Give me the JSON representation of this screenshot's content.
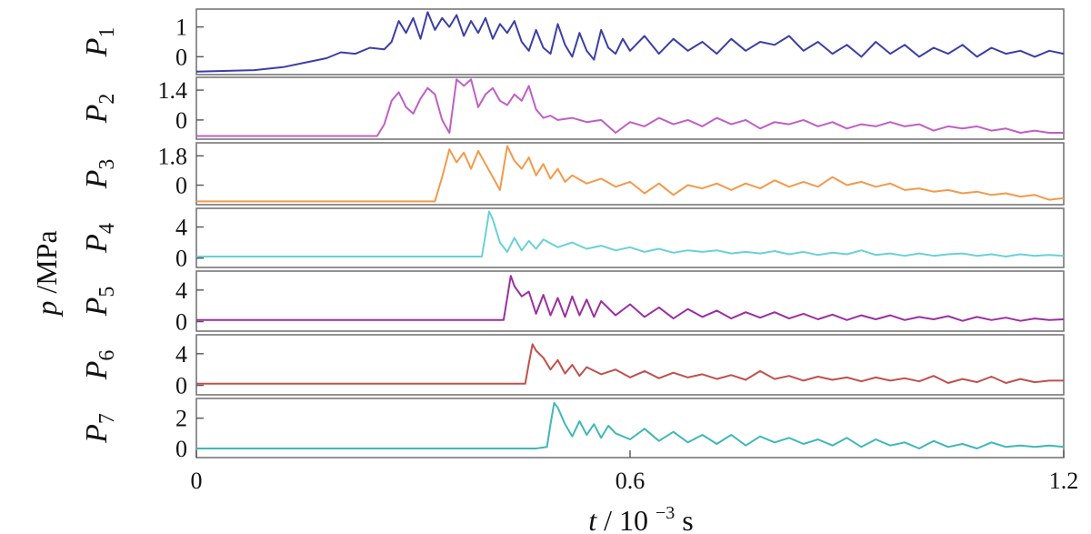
{
  "chart_data": {
    "type": "line",
    "layout": "stacked-panels",
    "xlabel": {
      "var": "t",
      "sep": "/ ",
      "unit_base": "10",
      "unit_exp": "−3",
      "unit_tail": "s"
    },
    "ylabel": {
      "var": "p",
      "unit": "/MPa"
    },
    "xlim": [
      0,
      1.2
    ],
    "xticks": [
      {
        "value": 0,
        "label": "0"
      },
      {
        "value": 0.6,
        "label": "0.6"
      },
      {
        "value": 1.2,
        "label": "1.2"
      }
    ],
    "grid": false,
    "series": [
      {
        "name": "P",
        "sub": "1",
        "color": "#3b3fa6",
        "ylim": [
          -0.6,
          1.6
        ],
        "yticks": [
          {
            "value": 0,
            "label": "0"
          },
          {
            "value": 1,
            "label": "1"
          }
        ],
        "x": [
          0,
          0.08,
          0.12,
          0.15,
          0.18,
          0.2,
          0.22,
          0.24,
          0.26,
          0.27,
          0.28,
          0.29,
          0.3,
          0.31,
          0.32,
          0.33,
          0.34,
          0.35,
          0.36,
          0.37,
          0.38,
          0.39,
          0.4,
          0.41,
          0.42,
          0.43,
          0.44,
          0.45,
          0.46,
          0.47,
          0.48,
          0.49,
          0.5,
          0.51,
          0.52,
          0.53,
          0.54,
          0.55,
          0.56,
          0.57,
          0.58,
          0.59,
          0.6,
          0.62,
          0.64,
          0.66,
          0.68,
          0.7,
          0.72,
          0.74,
          0.76,
          0.78,
          0.8,
          0.82,
          0.84,
          0.86,
          0.88,
          0.9,
          0.92,
          0.94,
          0.96,
          0.98,
          1.0,
          1.02,
          1.04,
          1.06,
          1.08,
          1.1,
          1.12,
          1.14,
          1.16,
          1.18,
          1.2
        ],
        "y": [
          -0.5,
          -0.45,
          -0.35,
          -0.2,
          -0.05,
          0.15,
          0.1,
          0.3,
          0.25,
          0.5,
          1.2,
          0.8,
          1.3,
          0.6,
          1.5,
          0.9,
          1.3,
          1.0,
          1.4,
          0.7,
          1.2,
          0.8,
          1.3,
          0.6,
          1.1,
          0.8,
          1.2,
          0.5,
          0.2,
          0.9,
          0.3,
          0.1,
          1.1,
          0.4,
          0.0,
          0.8,
          0.2,
          -0.1,
          0.9,
          0.3,
          0.1,
          0.6,
          0.2,
          0.7,
          0.1,
          0.6,
          0.2,
          0.5,
          0.1,
          0.6,
          0.2,
          0.5,
          0.4,
          0.7,
          0.2,
          0.5,
          0.1,
          0.4,
          0.0,
          0.5,
          0.1,
          0.4,
          0.0,
          0.3,
          0.1,
          0.4,
          0.0,
          0.3,
          0.1,
          0.2,
          0.0,
          0.2,
          0.1
        ]
      },
      {
        "name": "P",
        "sub": "2",
        "color": "#c05fc4",
        "ylim": [
          -0.9,
          2.0
        ],
        "yticks": [
          {
            "value": 0,
            "label": "0"
          },
          {
            "value": 1.4,
            "label": "1.4"
          }
        ],
        "x": [
          0,
          0.25,
          0.26,
          0.27,
          0.28,
          0.29,
          0.3,
          0.31,
          0.32,
          0.33,
          0.34,
          0.35,
          0.36,
          0.37,
          0.38,
          0.39,
          0.4,
          0.41,
          0.42,
          0.43,
          0.44,
          0.45,
          0.46,
          0.47,
          0.48,
          0.49,
          0.5,
          0.52,
          0.54,
          0.56,
          0.58,
          0.6,
          0.62,
          0.64,
          0.66,
          0.68,
          0.7,
          0.72,
          0.74,
          0.76,
          0.78,
          0.8,
          0.82,
          0.84,
          0.86,
          0.88,
          0.9,
          0.92,
          0.94,
          0.96,
          0.98,
          1.0,
          1.02,
          1.04,
          1.06,
          1.08,
          1.1,
          1.12,
          1.14,
          1.16,
          1.18,
          1.2
        ],
        "y": [
          -0.75,
          -0.75,
          -0.2,
          0.9,
          1.3,
          0.6,
          0.3,
          1.0,
          1.5,
          1.2,
          0.0,
          -0.6,
          1.9,
          1.6,
          1.9,
          0.6,
          1.2,
          1.5,
          0.9,
          0.7,
          1.2,
          0.9,
          1.6,
          0.5,
          0.1,
          0.2,
          0.0,
          0.1,
          -0.1,
          0.0,
          -0.6,
          -0.1,
          -0.3,
          0.1,
          -0.2,
          0.0,
          -0.3,
          0.1,
          -0.2,
          0.0,
          -0.4,
          -0.1,
          -0.2,
          0.0,
          -0.3,
          -0.1,
          -0.4,
          -0.2,
          -0.3,
          -0.1,
          -0.3,
          -0.2,
          -0.5,
          -0.3,
          -0.4,
          -0.3,
          -0.5,
          -0.4,
          -0.6,
          -0.5,
          -0.6,
          -0.6
        ]
      },
      {
        "name": "P",
        "sub": "3",
        "color": "#f39a4a",
        "ylim": [
          -1.2,
          2.6
        ],
        "yticks": [
          {
            "value": 0,
            "label": "0"
          },
          {
            "value": 1.8,
            "label": "1.8"
          }
        ],
        "x": [
          0,
          0.33,
          0.34,
          0.35,
          0.36,
          0.37,
          0.38,
          0.39,
          0.4,
          0.41,
          0.42,
          0.43,
          0.44,
          0.45,
          0.46,
          0.47,
          0.48,
          0.49,
          0.5,
          0.51,
          0.52,
          0.54,
          0.56,
          0.58,
          0.6,
          0.62,
          0.64,
          0.66,
          0.68,
          0.7,
          0.72,
          0.74,
          0.76,
          0.78,
          0.8,
          0.82,
          0.84,
          0.86,
          0.88,
          0.9,
          0.92,
          0.94,
          0.96,
          0.98,
          1.0,
          1.02,
          1.04,
          1.06,
          1.08,
          1.1,
          1.12,
          1.14,
          1.16,
          1.18,
          1.2
        ],
        "y": [
          -1.0,
          -1.0,
          0.5,
          2.2,
          1.4,
          2.0,
          1.0,
          2.1,
          1.3,
          0.5,
          -0.3,
          2.4,
          1.5,
          1.0,
          1.7,
          0.6,
          1.3,
          0.4,
          1.0,
          0.2,
          0.6,
          0.1,
          0.4,
          -0.1,
          0.2,
          -0.5,
          0.1,
          -0.6,
          0.0,
          -0.2,
          0.1,
          -0.3,
          0.1,
          -0.2,
          0.3,
          -0.1,
          0.2,
          -0.1,
          0.5,
          0.0,
          0.2,
          -0.1,
          0.1,
          -0.3,
          -0.2,
          -0.4,
          -0.3,
          -0.5,
          -0.4,
          -0.6,
          -0.5,
          -0.7,
          -0.6,
          -0.9,
          -0.8
        ]
      },
      {
        "name": "P",
        "sub": "4",
        "color": "#6ad1d6",
        "ylim": [
          -1.2,
          6.4
        ],
        "yticks": [
          {
            "value": 0,
            "label": "0"
          },
          {
            "value": 4,
            "label": "4"
          }
        ],
        "x": [
          0,
          0.395,
          0.4,
          0.405,
          0.41,
          0.415,
          0.42,
          0.43,
          0.44,
          0.45,
          0.46,
          0.47,
          0.48,
          0.5,
          0.52,
          0.54,
          0.56,
          0.58,
          0.6,
          0.62,
          0.64,
          0.66,
          0.68,
          0.7,
          0.72,
          0.74,
          0.76,
          0.78,
          0.8,
          0.82,
          0.84,
          0.86,
          0.88,
          0.9,
          0.92,
          0.94,
          0.96,
          0.98,
          1.0,
          1.02,
          1.04,
          1.06,
          1.08,
          1.1,
          1.12,
          1.14,
          1.16,
          1.18,
          1.2
        ],
        "y": [
          0.2,
          0.2,
          3.0,
          6.0,
          5.0,
          3.5,
          2.0,
          0.8,
          2.6,
          1.0,
          2.2,
          1.2,
          2.4,
          1.4,
          2.0,
          1.2,
          1.6,
          1.0,
          1.4,
          0.8,
          1.2,
          0.7,
          1.0,
          0.8,
          1.0,
          0.6,
          0.8,
          0.6,
          0.9,
          0.5,
          0.8,
          0.4,
          0.7,
          0.5,
          1.0,
          0.4,
          0.6,
          0.3,
          0.6,
          0.3,
          0.5,
          0.6,
          0.3,
          0.5,
          0.2,
          0.5,
          0.3,
          0.4,
          0.3
        ]
      },
      {
        "name": "P",
        "sub": "5",
        "color": "#9b2fa0",
        "ylim": [
          -1.2,
          6.4
        ],
        "yticks": [
          {
            "value": 0,
            "label": "0"
          },
          {
            "value": 4,
            "label": "4"
          }
        ],
        "x": [
          0,
          0.425,
          0.43,
          0.435,
          0.44,
          0.45,
          0.46,
          0.47,
          0.48,
          0.49,
          0.5,
          0.51,
          0.52,
          0.53,
          0.54,
          0.55,
          0.56,
          0.58,
          0.6,
          0.62,
          0.64,
          0.66,
          0.68,
          0.7,
          0.72,
          0.74,
          0.76,
          0.78,
          0.8,
          0.82,
          0.84,
          0.86,
          0.88,
          0.9,
          0.92,
          0.94,
          0.96,
          0.98,
          1.0,
          1.02,
          1.04,
          1.06,
          1.08,
          1.1,
          1.12,
          1.14,
          1.16,
          1.18,
          1.2
        ],
        "y": [
          0.2,
          0.2,
          3.0,
          5.8,
          4.5,
          3.2,
          3.8,
          1.0,
          3.4,
          0.8,
          3.0,
          0.6,
          3.2,
          0.8,
          2.8,
          0.6,
          2.6,
          0.8,
          2.2,
          0.6,
          1.8,
          0.4,
          1.6,
          0.6,
          1.4,
          0.4,
          1.2,
          0.5,
          1.2,
          0.4,
          1.0,
          0.3,
          0.9,
          0.2,
          0.8,
          0.3,
          0.8,
          0.2,
          0.6,
          0.3,
          0.7,
          0.1,
          0.6,
          0.2,
          0.5,
          0.1,
          0.4,
          0.2,
          0.3
        ]
      },
      {
        "name": "P",
        "sub": "6",
        "color": "#c0504d",
        "ylim": [
          -1.2,
          6.4
        ],
        "yticks": [
          {
            "value": 0,
            "label": "0"
          },
          {
            "value": 4,
            "label": "4"
          }
        ],
        "x": [
          0,
          0.455,
          0.46,
          0.465,
          0.47,
          0.48,
          0.49,
          0.5,
          0.51,
          0.52,
          0.53,
          0.54,
          0.56,
          0.58,
          0.6,
          0.62,
          0.64,
          0.66,
          0.68,
          0.7,
          0.72,
          0.74,
          0.76,
          0.78,
          0.8,
          0.82,
          0.84,
          0.86,
          0.88,
          0.9,
          0.92,
          0.94,
          0.96,
          0.98,
          1.0,
          1.02,
          1.04,
          1.06,
          1.08,
          1.1,
          1.12,
          1.14,
          1.16,
          1.18,
          1.2
        ],
        "y": [
          0.2,
          0.2,
          2.8,
          5.2,
          4.4,
          3.5,
          2.0,
          3.2,
          1.5,
          2.6,
          1.2,
          2.3,
          1.4,
          2.0,
          1.0,
          1.8,
          0.9,
          1.6,
          1.0,
          1.4,
          0.8,
          1.3,
          0.7,
          1.8,
          0.8,
          1.2,
          0.6,
          1.1,
          0.7,
          1.0,
          0.5,
          1.0,
          0.6,
          0.9,
          0.5,
          1.2,
          0.3,
          0.8,
          0.4,
          1.1,
          0.3,
          0.8,
          0.4,
          0.6,
          0.6
        ]
      },
      {
        "name": "P",
        "sub": "7",
        "color": "#3fb8b8",
        "ylim": [
          -0.6,
          3.3
        ],
        "yticks": [
          {
            "value": 0,
            "label": "0"
          },
          {
            "value": 2,
            "label": "2"
          }
        ],
        "x": [
          0,
          0.47,
          0.485,
          0.49,
          0.495,
          0.5,
          0.51,
          0.52,
          0.53,
          0.54,
          0.55,
          0.56,
          0.57,
          0.58,
          0.6,
          0.62,
          0.64,
          0.66,
          0.68,
          0.7,
          0.72,
          0.74,
          0.76,
          0.78,
          0.8,
          0.82,
          0.84,
          0.86,
          0.88,
          0.9,
          0.92,
          0.94,
          0.96,
          0.98,
          1.0,
          1.02,
          1.04,
          1.06,
          1.08,
          1.1,
          1.12,
          1.14,
          1.16,
          1.18,
          1.2
        ],
        "y": [
          0.0,
          0.0,
          0.1,
          1.6,
          3.0,
          2.7,
          1.6,
          0.8,
          1.8,
          0.9,
          1.6,
          0.7,
          1.5,
          1.0,
          0.6,
          1.3,
          0.5,
          1.1,
          0.4,
          0.9,
          0.3,
          0.9,
          0.2,
          0.8,
          0.4,
          0.7,
          0.3,
          0.6,
          0.2,
          0.7,
          0.1,
          0.6,
          0.2,
          0.4,
          0.0,
          0.5,
          0.1,
          0.3,
          0.0,
          0.4,
          0.1,
          0.2,
          0.1,
          0.2,
          0.1
        ]
      }
    ]
  }
}
